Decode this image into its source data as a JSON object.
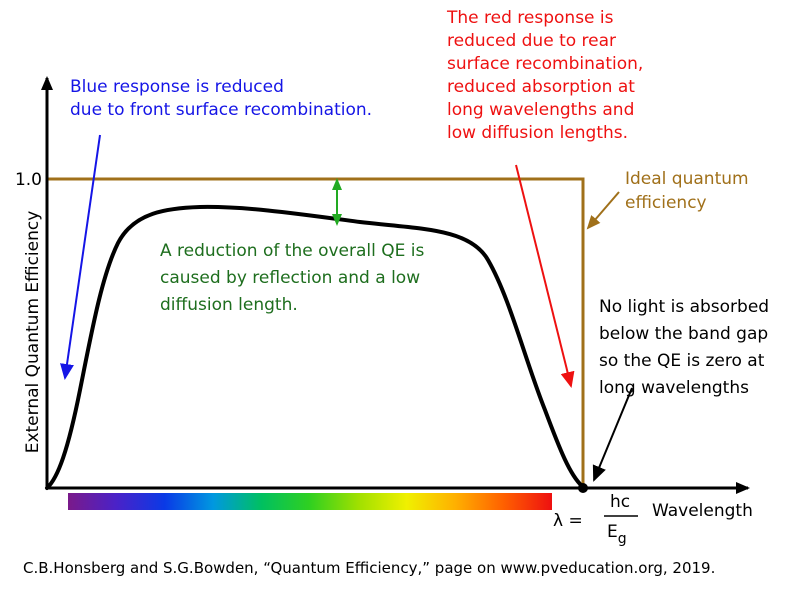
{
  "diagram": {
    "ytick": "1.0",
    "ylabel": "External Quantum Efficiency",
    "xlabel": "Wavelength",
    "bandgap": {
      "lambda": "λ =",
      "numerator": "hc",
      "denominator_main": "E",
      "denominator_sub": "g"
    },
    "annotations": {
      "blue": {
        "color": "#1515e6",
        "lines": [
          "Blue response is reduced",
          "due to front surface recombination."
        ]
      },
      "red": {
        "color": "#ee1111",
        "lines": [
          "The red response is",
          "reduced due to rear",
          "surface recombination,",
          "reduced absorption at",
          "long wavelengths and",
          "low diffusion lengths."
        ]
      },
      "ideal": {
        "color": "#a0701a",
        "lines": [
          "Ideal quantum",
          "efficiency"
        ]
      },
      "reduction": {
        "color": "#1e6e1e",
        "lines": [
          "A reduction of the overall QE is",
          "caused by reflection and a low",
          "diffusion length."
        ]
      },
      "no_light": {
        "color": "#000000",
        "lines": [
          "No light  is absorbed",
          "below the band gap",
          "so the QE is zero at",
          "long wavelengths"
        ]
      }
    },
    "colors": {
      "curve": "#000000",
      "ideal_line": "#a0701a",
      "reduction_arrow": "#22aa22",
      "axes": "#000000"
    },
    "spectrum_colors": [
      "#7a1a8a",
      "#4a22c8",
      "#0a3ae6",
      "#0098e0",
      "#00c060",
      "#30d020",
      "#a0e000",
      "#f0f000",
      "#ffb000",
      "#ff6000",
      "#ee1010"
    ]
  },
  "caption": "C.B.Honsberg and S.G.Bowden, “Quantum Efficiency,” page on www.pveducation.org, 2019."
}
